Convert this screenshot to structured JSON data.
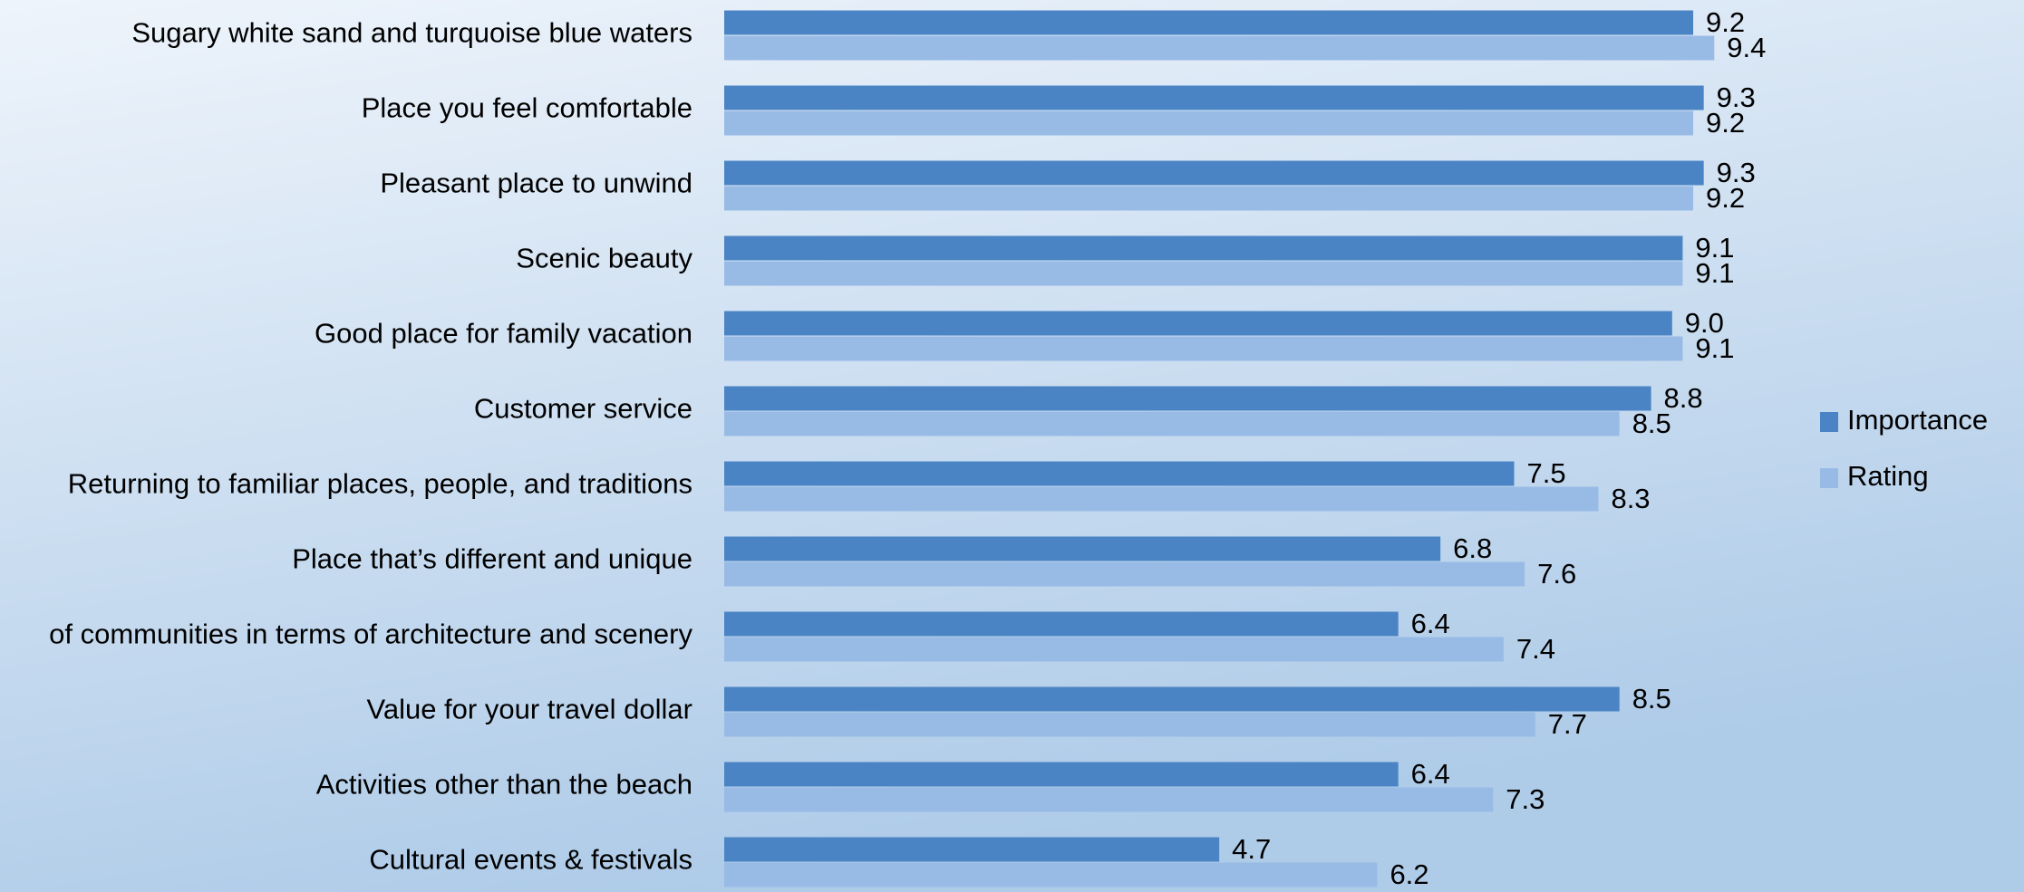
{
  "chart_data": {
    "type": "bar",
    "orientation": "horizontal",
    "categories": [
      "Sugary white sand and turquoise blue waters",
      "Place you feel comfortable",
      "Pleasant place to unwind",
      "Scenic beauty",
      "Good place for family vacation",
      "Customer service",
      "Returning to familiar places, people, and traditions",
      "Place that’s different and unique",
      "of communities in terms of architecture and scenery",
      "Value for your travel dollar",
      "Activities other than the beach",
      "Cultural events & festivals"
    ],
    "series": [
      {
        "name": "Importance",
        "color": "#4a84c4",
        "values": [
          9.2,
          9.3,
          9.3,
          9.1,
          9,
          8.8,
          7.5,
          6.8,
          6.4,
          8.5,
          6.4,
          4.7
        ],
        "value_labels": [
          "9.2",
          "9.3",
          "9.3",
          "9.1",
          "9.0",
          "8.8",
          "7.5",
          "6.8",
          "6.4",
          "8.5",
          "6.4",
          "4.7"
        ]
      },
      {
        "name": "Rating",
        "color": "#98bbe6",
        "values": [
          9.4,
          9.2,
          9.2,
          9.1,
          9.1,
          8.5,
          8.3,
          7.6,
          7.4,
          7.7,
          7.3,
          6.2
        ],
        "value_labels": [
          "9.4",
          "9.2",
          "9.2",
          "9.1",
          "9.1",
          "8.5",
          "8.3",
          "7.6",
          "7.4",
          "7.7",
          "7.3",
          "6.2"
        ]
      }
    ],
    "legend": "right"
  }
}
